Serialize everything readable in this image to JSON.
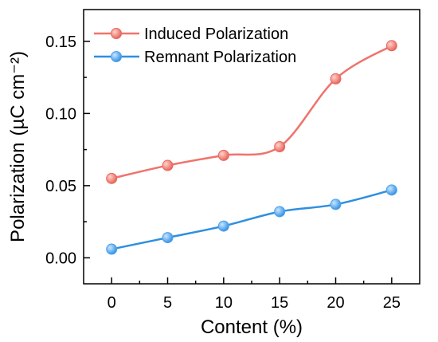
{
  "chart_data": {
    "type": "line",
    "xlabel": "Content (%)",
    "ylabel": "Polarization",
    "ylabel_unit": "(µC cm⁻²)",
    "x": [
      0,
      5,
      10,
      15,
      20,
      25
    ],
    "xlim": [
      -2.5,
      27.5
    ],
    "ylim": [
      -0.018,
      0.172
    ],
    "x_ticks": [
      "0",
      "5",
      "10",
      "15",
      "20",
      "25"
    ],
    "y_ticks": [
      0.0,
      0.05,
      0.1,
      0.15
    ],
    "y_tick_labels": [
      "0.00",
      "0.05",
      "0.10",
      "0.15"
    ],
    "grid": false,
    "legend_position": "top-left",
    "series": [
      {
        "name": "Induced Polarization",
        "values": [
          0.055,
          0.064,
          0.071,
          0.077,
          0.124,
          0.147
        ],
        "color": "#f0736b",
        "marker_color": "#e8685f"
      },
      {
        "name": "Remnant Polarization",
        "values": [
          0.006,
          0.014,
          0.022,
          0.032,
          0.037,
          0.047
        ],
        "color": "#2e8fe0",
        "marker_color": "#4ba3ee"
      }
    ]
  }
}
